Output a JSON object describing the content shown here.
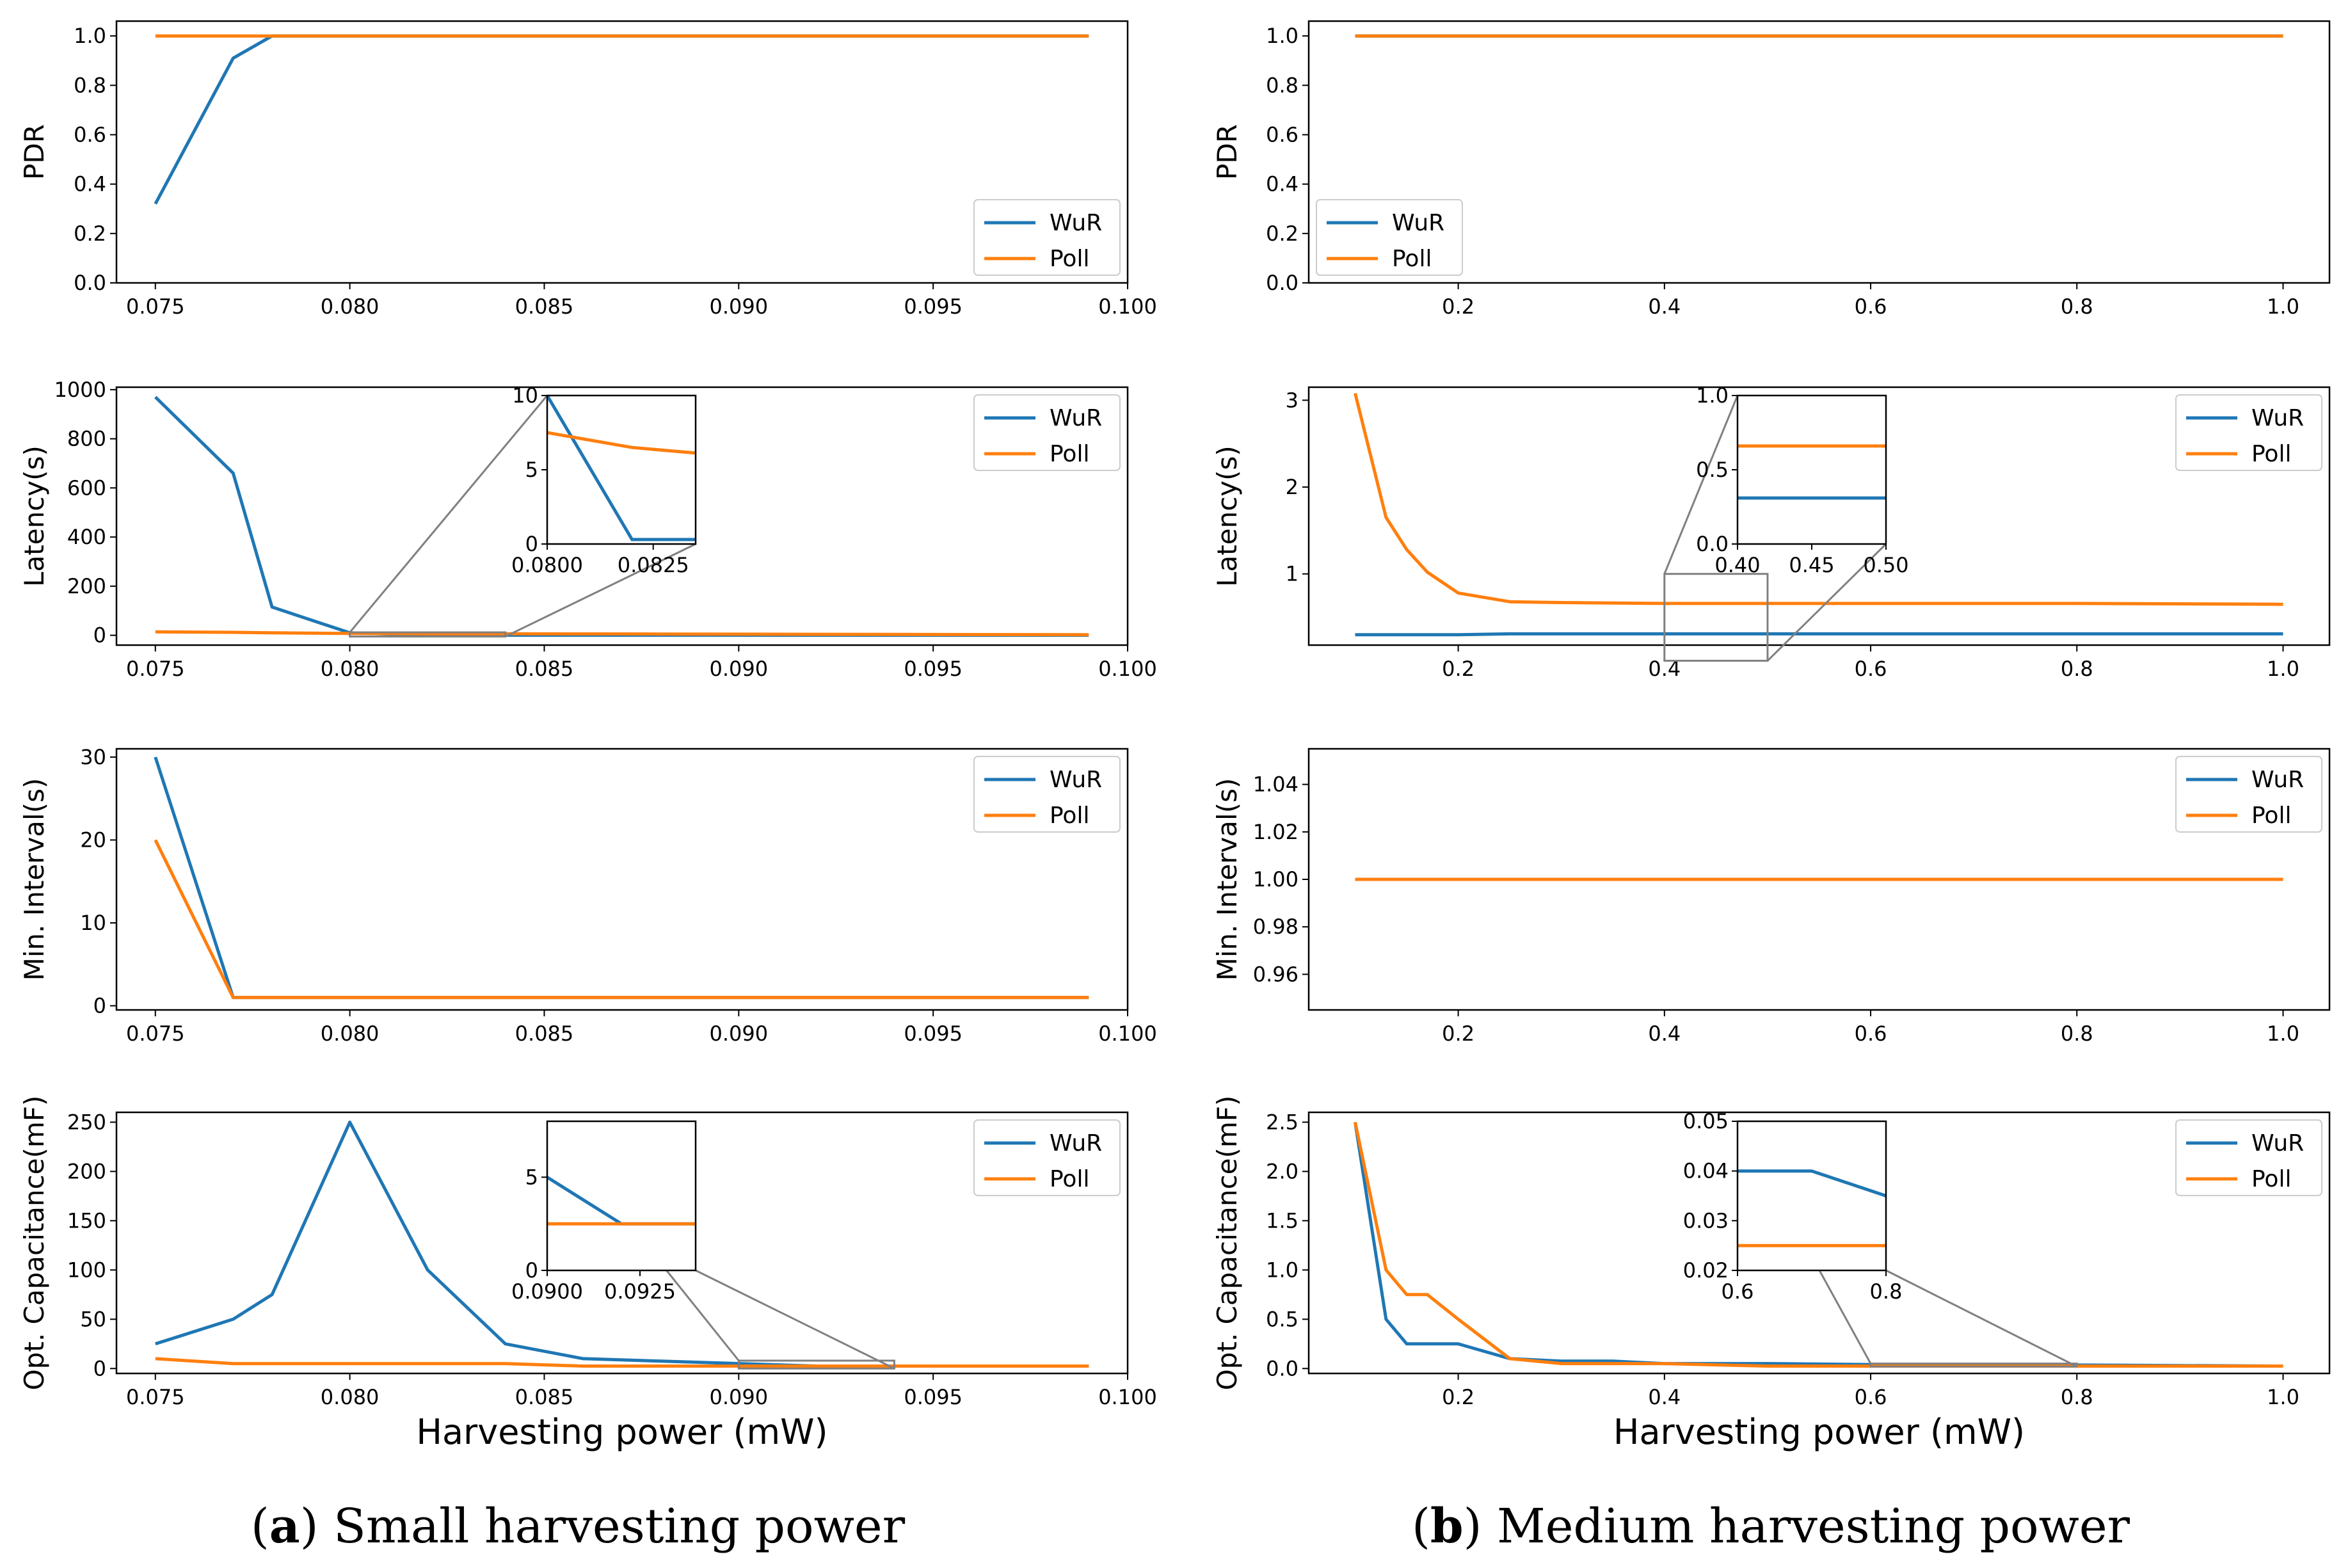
{
  "colors": {
    "wur": "#1f77b4",
    "poll": "#ff7f0e",
    "axis": "#000000",
    "zoom": "#808080"
  },
  "captions": {
    "a": {
      "letter": "a",
      "text": "Small harvesting power"
    },
    "b": {
      "letter": "b",
      "text": "Medium harvesting power"
    }
  },
  "chart_data": [
    {
      "id": "a-pdr",
      "type": "line",
      "ylabel": "PDR",
      "xlabel": "",
      "xlim": [
        0.074,
        0.1
      ],
      "ylim": [
        0,
        1.06
      ],
      "legend": "lower-right",
      "xticks": [
        "0.075",
        "0.080",
        "0.085",
        "0.090",
        "0.095",
        "0.100"
      ],
      "yticks": [
        "0.0",
        "0.2",
        "0.4",
        "0.6",
        "0.8",
        "1.0"
      ],
      "series": [
        {
          "name": "WuR",
          "color": "wur",
          "x": [
            0.075,
            0.077,
            0.078,
            0.099
          ],
          "y": [
            0.32,
            0.91,
            1.0,
            1.0
          ]
        },
        {
          "name": "Poll",
          "color": "poll",
          "x": [
            0.075,
            0.099
          ],
          "y": [
            1.0,
            1.0
          ]
        }
      ]
    },
    {
      "id": "a-latency",
      "type": "line",
      "ylabel": "Latency(s)",
      "xlabel": "",
      "xlim": [
        0.074,
        0.1
      ],
      "ylim": [
        -40,
        1010
      ],
      "legend": "upper-right",
      "xticks": [
        "0.075",
        "0.080",
        "0.085",
        "0.090",
        "0.095",
        "0.100"
      ],
      "yticks": [
        "0",
        "200",
        "400",
        "600",
        "800",
        "1000"
      ],
      "series": [
        {
          "name": "WuR",
          "color": "wur",
          "x": [
            0.075,
            0.077,
            0.078,
            0.08,
            0.082,
            0.084,
            0.086,
            0.088,
            0.09,
            0.092,
            0.094,
            0.096,
            0.099
          ],
          "y": [
            970,
            660,
            115,
            10,
            0.3,
            0.3,
            0.3,
            0.3,
            0.3,
            0.3,
            0.3,
            0.3,
            0.3
          ]
        },
        {
          "name": "Poll",
          "color": "poll",
          "x": [
            0.075,
            0.077,
            0.078,
            0.08,
            0.082,
            0.084,
            0.086,
            0.088,
            0.09,
            0.092,
            0.094,
            0.096,
            0.099
          ],
          "y": [
            14,
            12,
            10,
            7.5,
            6.5,
            6,
            5.5,
            5,
            4.5,
            4,
            3.5,
            3,
            2.5
          ]
        }
      ],
      "inset": {
        "xlim": [
          0.08,
          0.0835
        ],
        "ylim": [
          0,
          10
        ],
        "xticks": [
          "0.0800",
          "0.0825"
        ],
        "yticks": [
          "0",
          "5",
          "10"
        ],
        "zoom_box_data": [
          [
            0.08,
            0.084
          ],
          [
            -5,
            12
          ]
        ]
      }
    },
    {
      "id": "a-interval",
      "type": "line",
      "ylabel": "Min. Interval(s)",
      "xlabel": "",
      "xlim": [
        0.074,
        0.1
      ],
      "ylim": [
        -0.5,
        31
      ],
      "legend": "upper-right",
      "xticks": [
        "0.075",
        "0.080",
        "0.085",
        "0.090",
        "0.095",
        "0.100"
      ],
      "yticks": [
        "0",
        "10",
        "20",
        "30"
      ],
      "series": [
        {
          "name": "WuR",
          "color": "wur",
          "x": [
            0.075,
            0.077,
            0.099
          ],
          "y": [
            30,
            1,
            1
          ]
        },
        {
          "name": "Poll",
          "color": "poll",
          "x": [
            0.075,
            0.077,
            0.099
          ],
          "y": [
            20,
            1,
            1
          ]
        }
      ]
    },
    {
      "id": "a-capacitance",
      "type": "line",
      "ylabel": "Opt. Capacitance(mF)",
      "xlabel": "Harvesting power (mW)",
      "xlim": [
        0.074,
        0.1
      ],
      "ylim": [
        -5,
        260
      ],
      "legend": "upper-right",
      "xticks": [
        "0.075",
        "0.080",
        "0.085",
        "0.090",
        "0.095",
        "0.100"
      ],
      "yticks": [
        "0",
        "50",
        "100",
        "150",
        "200",
        "250"
      ],
      "series": [
        {
          "name": "WuR",
          "color": "wur",
          "x": [
            0.075,
            0.077,
            0.078,
            0.08,
            0.082,
            0.084,
            0.086,
            0.088,
            0.09,
            0.092,
            0.094,
            0.096,
            0.099
          ],
          "y": [
            25,
            50,
            75,
            250,
            100,
            25,
            10,
            7.5,
            5,
            2.5,
            2.5,
            2.5,
            2.5
          ]
        },
        {
          "name": "Poll",
          "color": "poll",
          "x": [
            0.075,
            0.077,
            0.078,
            0.08,
            0.082,
            0.084,
            0.086,
            0.088,
            0.09,
            0.092,
            0.094,
            0.096,
            0.099
          ],
          "y": [
            10,
            5,
            5,
            5,
            5,
            5,
            2.5,
            2.5,
            2.5,
            2.5,
            2.5,
            2.5,
            2.5
          ]
        }
      ],
      "inset": {
        "xlim": [
          0.09,
          0.094
        ],
        "ylim": [
          0,
          8
        ],
        "xticks": [
          "0.0900",
          "0.0925"
        ],
        "yticks": [
          "0",
          "5"
        ],
        "zoom_box_data": [
          [
            0.09,
            0.094
          ],
          [
            0,
            8
          ]
        ]
      }
    },
    {
      "id": "b-pdr",
      "type": "line",
      "ylabel": "PDR",
      "xlabel": "",
      "xlim": [
        0.055,
        1.045
      ],
      "ylim": [
        0,
        1.06
      ],
      "legend": "lower-left",
      "xticks": [
        "0.2",
        "0.4",
        "0.6",
        "0.8",
        "1.0"
      ],
      "yticks": [
        "0.0",
        "0.2",
        "0.4",
        "0.6",
        "0.8",
        "1.0"
      ],
      "series": [
        {
          "name": "WuR",
          "color": "wur",
          "x": [
            0.1,
            1.0
          ],
          "y": [
            1.0,
            1.0
          ]
        },
        {
          "name": "Poll",
          "color": "poll",
          "x": [
            0.1,
            1.0
          ],
          "y": [
            1.0,
            1.0
          ]
        }
      ]
    },
    {
      "id": "b-latency",
      "type": "line",
      "ylabel": "Latency(s)",
      "xlabel": "",
      "xlim": [
        0.055,
        1.045
      ],
      "ylim": [
        0.18,
        3.15
      ],
      "legend": "upper-right",
      "xticks": [
        "0.2",
        "0.4",
        "0.6",
        "0.8",
        "1.0"
      ],
      "yticks": [
        "1",
        "2",
        "3"
      ],
      "series": [
        {
          "name": "WuR",
          "color": "wur",
          "x": [
            0.1,
            0.13,
            0.15,
            0.17,
            0.2,
            0.25,
            0.3,
            0.4,
            0.5,
            0.6,
            0.8,
            1.0
          ],
          "y": [
            0.3,
            0.3,
            0.3,
            0.3,
            0.3,
            0.31,
            0.31,
            0.31,
            0.31,
            0.31,
            0.31,
            0.31
          ]
        },
        {
          "name": "Poll",
          "color": "poll",
          "x": [
            0.1,
            0.13,
            0.15,
            0.17,
            0.2,
            0.25,
            0.3,
            0.4,
            0.5,
            0.6,
            0.8,
            1.0
          ],
          "y": [
            3.08,
            1.65,
            1.28,
            1.02,
            0.78,
            0.68,
            0.67,
            0.66,
            0.66,
            0.66,
            0.66,
            0.65
          ]
        }
      ],
      "inset": {
        "xlim": [
          0.4,
          0.5
        ],
        "ylim": [
          0,
          1.0
        ],
        "xticks": [
          "0.40",
          "0.45",
          "0.50"
        ],
        "yticks": [
          "0.0",
          "0.5",
          "1.0"
        ],
        "zoom_box_data": [
          [
            0.4,
            0.5
          ],
          [
            0,
            1.0
          ]
        ]
      }
    },
    {
      "id": "b-interval",
      "type": "line",
      "ylabel": "Min. Interval(s)",
      "xlabel": "",
      "xlim": [
        0.055,
        1.045
      ],
      "ylim": [
        0.945,
        1.055
      ],
      "legend": "upper-right",
      "xticks": [
        "0.2",
        "0.4",
        "0.6",
        "0.8",
        "1.0"
      ],
      "yticks": [
        "0.96",
        "0.98",
        "1.00",
        "1.02",
        "1.04"
      ],
      "series": [
        {
          "name": "WuR",
          "color": "wur",
          "x": [
            0.1,
            1.0
          ],
          "y": [
            1.0,
            1.0
          ]
        },
        {
          "name": "Poll",
          "color": "poll",
          "x": [
            0.1,
            1.0
          ],
          "y": [
            1.0,
            1.0
          ]
        }
      ]
    },
    {
      "id": "b-capacitance",
      "type": "line",
      "ylabel": "Opt. Capacitance(mF)",
      "xlabel": "Harvesting power (mW)",
      "xlim": [
        0.055,
        1.045
      ],
      "ylim": [
        -0.05,
        2.6
      ],
      "legend": "upper-right",
      "xticks": [
        "0.2",
        "0.4",
        "0.6",
        "0.8",
        "1.0"
      ],
      "yticks": [
        "0.0",
        "0.5",
        "1.0",
        "1.5",
        "2.0",
        "2.5"
      ],
      "series": [
        {
          "name": "WuR",
          "color": "wur",
          "x": [
            0.1,
            0.13,
            0.15,
            0.2,
            0.25,
            0.3,
            0.35,
            0.4,
            0.5,
            0.6,
            0.7,
            0.8,
            1.0
          ],
          "y": [
            2.5,
            0.5,
            0.25,
            0.25,
            0.1,
            0.075,
            0.075,
            0.05,
            0.05,
            0.04,
            0.04,
            0.035,
            0.025
          ]
        },
        {
          "name": "Poll",
          "color": "poll",
          "x": [
            0.1,
            0.13,
            0.15,
            0.17,
            0.2,
            0.25,
            0.3,
            0.4,
            0.5,
            0.6,
            0.8,
            1.0
          ],
          "y": [
            2.5,
            1.0,
            0.75,
            0.75,
            0.5,
            0.1,
            0.05,
            0.05,
            0.025,
            0.025,
            0.025,
            0.025
          ]
        }
      ],
      "inset": {
        "xlim": [
          0.6,
          0.8
        ],
        "ylim": [
          0.02,
          0.05
        ],
        "xticks": [
          "0.6",
          "0.8"
        ],
        "yticks": [
          "0.02",
          "0.03",
          "0.04",
          "0.05"
        ],
        "zoom_box_data": [
          [
            0.6,
            0.8
          ],
          [
            0.02,
            0.05
          ]
        ]
      }
    }
  ]
}
